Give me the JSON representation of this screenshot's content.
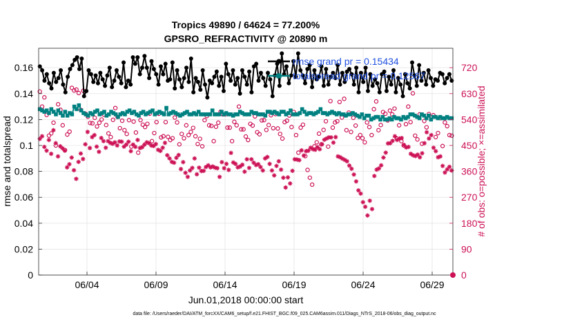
{
  "chart_data": {
    "type": "line",
    "title": "Tropics 49890 / 64624 = 77.200%",
    "subtitle": "GPSRO_REFRACTIVITY @ 20890 m",
    "xlabel": "Jun.01,2018 00:00:00 start",
    "ylabel": "rmse and totalspread",
    "ylabel_right": "# of obs: o=possible; ×=assimilated",
    "footer": "data file: /Users/raeder/DAI/ATM_forcXX/CAM6_setup/f.e21.FHIST_BGC.f09_025.CAM6assim.011/Diags_NTrS_2018-06/obs_diag_output.nc",
    "ylim": [
      0,
      0.175
    ],
    "ylim_right": [
      0,
      787.5
    ],
    "xlim": [
      0.5,
      30.5
    ],
    "yticks": [
      0,
      0.02,
      0.04,
      0.06,
      0.08,
      0.1,
      0.12,
      0.14,
      0.16
    ],
    "ytick_labels": [
      "0",
      "0.02",
      "0.04",
      "0.06",
      "0.08",
      "0.1",
      "0.12",
      "0.14",
      "0.16"
    ],
    "yticks_right": [
      0,
      90,
      180,
      270,
      360,
      450,
      540,
      630,
      720
    ],
    "xticks": [
      4,
      9,
      14,
      19,
      24,
      29
    ],
    "xtick_labels": [
      "06/04",
      "06/09",
      "06/14",
      "06/19",
      "06/24",
      "06/29"
    ],
    "legend": [
      {
        "label": "rmse grand pr = 0.15434",
        "color": "#000000"
      },
      {
        "label": "totalspread grand pr = 0.12567",
        "color": "#008080"
      }
    ],
    "series": [
      {
        "name": "rmse",
        "axis": "left",
        "color": "#000000",
        "values": [
          0.161,
          0.158,
          0.15,
          0.155,
          0.148,
          0.144,
          0.156,
          0.149,
          0.152,
          0.158,
          0.147,
          0.141,
          0.153,
          0.159,
          0.162,
          0.166,
          0.168,
          0.159,
          0.167,
          0.138,
          0.142,
          0.158,
          0.155,
          0.149,
          0.154,
          0.148,
          0.156,
          0.151,
          0.146,
          0.154,
          0.16,
          0.145,
          0.15,
          0.158,
          0.153,
          0.148,
          0.164,
          0.145,
          0.15,
          0.147,
          0.168,
          0.163,
          0.168,
          0.155,
          0.16,
          0.169,
          0.16,
          0.152,
          0.165,
          0.159,
          0.155,
          0.147,
          0.161,
          0.155,
          0.163,
          0.15,
          0.151,
          0.164,
          0.144,
          0.158,
          0.151,
          0.145,
          0.152,
          0.16,
          0.149,
          0.167,
          0.141,
          0.152,
          0.149,
          0.143,
          0.158,
          0.147,
          0.137,
          0.15,
          0.148,
          0.153,
          0.157,
          0.146,
          0.153,
          0.142,
          0.163,
          0.155,
          0.15,
          0.158,
          0.147,
          0.152,
          0.14,
          0.158,
          0.153,
          0.147,
          0.157,
          0.141,
          0.161,
          0.163,
          0.15,
          0.156,
          0.152,
          0.146,
          0.156,
          0.151,
          0.138,
          0.154,
          0.163,
          0.146,
          0.171,
          0.155,
          0.161,
          0.148,
          0.154,
          0.165,
          0.153,
          0.171,
          0.158,
          0.154,
          0.148,
          0.159,
          0.162,
          0.145,
          0.158,
          0.151,
          0.153,
          0.161,
          0.146,
          0.159,
          0.147,
          0.153,
          0.156,
          0.152,
          0.162,
          0.147,
          0.156,
          0.149,
          0.157,
          0.159,
          0.155,
          0.147,
          0.16,
          0.141,
          0.156,
          0.149,
          0.16,
          0.142,
          0.155,
          0.146,
          0.151,
          0.148,
          0.141,
          0.155,
          0.157,
          0.142,
          0.153,
          0.147,
          0.158,
          0.141,
          0.152,
          0.147,
          0.138,
          0.155,
          0.148,
          0.144,
          0.164,
          0.154,
          0.146,
          0.162,
          0.15,
          0.156,
          0.147,
          0.158,
          0.152,
          0.146,
          0.151,
          0.15,
          0.156,
          0.155,
          0.148,
          0.152,
          0.155,
          0.15
        ]
      },
      {
        "name": "totalspread",
        "axis": "left",
        "color": "#008080",
        "values": [
          0.128,
          0.127,
          0.126,
          0.127,
          0.125,
          0.128,
          0.126,
          0.124,
          0.127,
          0.125,
          0.123,
          0.126,
          0.123,
          0.125,
          0.124,
          0.13,
          0.128,
          0.131,
          0.127,
          0.125,
          0.124,
          0.123,
          0.125,
          0.124,
          0.126,
          0.127,
          0.124,
          0.125,
          0.126,
          0.123,
          0.124,
          0.126,
          0.125,
          0.124,
          0.122,
          0.124,
          0.125,
          0.124,
          0.126,
          0.127,
          0.125,
          0.126,
          0.124,
          0.123,
          0.125,
          0.126,
          0.124,
          0.125,
          0.126,
          0.127,
          0.124,
          0.125,
          0.126,
          0.125,
          0.124,
          0.129,
          0.124,
          0.125,
          0.126,
          0.125,
          0.124,
          0.123,
          0.124,
          0.125,
          0.126,
          0.124,
          0.124,
          0.125,
          0.124,
          0.126,
          0.124,
          0.124,
          0.124,
          0.124,
          0.124,
          0.127,
          0.124,
          0.124,
          0.124,
          0.126,
          0.124,
          0.125,
          0.124,
          0.124,
          0.123,
          0.124,
          0.124,
          0.126,
          0.125,
          0.124,
          0.124,
          0.124,
          0.126,
          0.125,
          0.125,
          0.124,
          0.124,
          0.124,
          0.123,
          0.126,
          0.126,
          0.125,
          0.126,
          0.125,
          0.124,
          0.126,
          0.126,
          0.124,
          0.125,
          0.127,
          0.124,
          0.124,
          0.124,
          0.125,
          0.128,
          0.126,
          0.124,
          0.125,
          0.125,
          0.124,
          0.125,
          0.126,
          0.128,
          0.125,
          0.125,
          0.124,
          0.125,
          0.126,
          0.125,
          0.124,
          0.125,
          0.124,
          0.124,
          0.123,
          0.124,
          0.124,
          0.125,
          0.124,
          0.123,
          0.122,
          0.124,
          0.121,
          0.123,
          0.123,
          0.12,
          0.121,
          0.122,
          0.122,
          0.12,
          0.122,
          0.12,
          0.12,
          0.121,
          0.12,
          0.122,
          0.121,
          0.121,
          0.12,
          0.122,
          0.121,
          0.122,
          0.124,
          0.124,
          0.123,
          0.122,
          0.121,
          0.124,
          0.123,
          0.121,
          0.123,
          0.12,
          0.122,
          0.122,
          0.121,
          0.122,
          0.121,
          0.121,
          0.122,
          0.121,
          0.121
        ]
      },
      {
        "name": "obs possible",
        "axis": "right",
        "marker": "o",
        "color": "#cc1155",
        "values": [
          637,
          585,
          617,
          556,
          484,
          492,
          529,
          450,
          593,
          574,
          520,
          434,
          488,
          498,
          650,
          641,
          644,
          632,
          573,
          640,
          560,
          550,
          528,
          527,
          546,
          516,
          529,
          540,
          557,
          521,
          492,
          479,
          539,
          580,
          549,
          510,
          536,
          503,
          490,
          538,
          446,
          533,
          495,
          425,
          538,
          522,
          514,
          525,
          560,
          465,
          493,
          531,
          560,
          478,
          482,
          531,
          480,
          469,
          475,
          547,
          530,
          454,
          490,
          475,
          520,
          486,
          497,
          511,
          482,
          455,
          473,
          447,
          538,
          552,
          520,
          518,
          465,
          515,
          529,
          567,
          558,
          558,
          512,
          512,
          465,
          532,
          520,
          585,
          506,
          506,
          481,
          469,
          525,
          519,
          551,
          496,
          489,
          537,
          538,
          504,
          521,
          555,
          510,
          559,
          509,
          490,
          474,
          531,
          536,
          554,
          514,
          566,
          486,
          425,
          512,
          522,
          413,
          365,
          338,
          314,
          447,
          461,
          491,
          454,
          504,
          534,
          446,
          604,
          512,
          530,
          534,
          601,
          547,
          612,
          503,
          564,
          497,
          546,
          519,
          476,
          486,
          475,
          461,
          530,
          514,
          486,
          576,
          603,
          503,
          521,
          566,
          560,
          537,
          571,
          558,
          578,
          474,
          520,
          465,
          450,
          524,
          585,
          531,
          631,
          484,
          471,
          558,
          456,
          535,
          513,
          559,
          547,
          555,
          479,
          493,
          545,
          448,
          530,
          517,
          486,
          484
        ]
      },
      {
        "name": "obs assimilated",
        "axis": "right",
        "marker": "x",
        "color": "#cc1155",
        "values": [
          473,
          482,
          445,
          432,
          469,
          421,
          503,
          458,
          412,
          447,
          440,
          432,
          374,
          385,
          408,
          364,
          334,
          393,
          422,
          403,
          454,
          497,
          441,
          479,
          486,
          446,
          428,
          476,
          465,
          442,
          465,
          459,
          456,
          461,
          450,
          464,
          463,
          446,
          453,
          463,
          430,
          453,
          445,
          469,
          441,
          444,
          453,
          461,
          458,
          450,
          448,
          455,
          435,
          431,
          442,
          459,
          416,
          405,
          393,
          390,
          407,
          417,
          368,
          392,
          355,
          341,
          363,
          372,
          405,
          350,
          373,
          361,
          362,
          375,
          381,
          374,
          377,
          373,
          371,
          341,
          392,
          371,
          386,
          365,
          424,
          391,
          386,
          374,
          377,
          383,
          359,
          402,
          372,
          402,
          390,
          382,
          385,
          375,
          363,
          405,
          410,
          386,
          363,
          346,
          379,
          395,
          366,
          338,
          304,
          339,
          318,
          362,
          402,
          401,
          399,
          433,
          415,
          430,
          432,
          442,
          437,
          435,
          444,
          437,
          454,
          470,
          474,
          478,
          478,
          460,
          479,
          412,
          409,
          404,
          400,
          395,
          380,
          369,
          349,
          325,
          294,
          283,
          253,
          237,
          207,
          258,
          229,
          344,
          366,
          370,
          381,
          408,
          425,
          457,
          458,
          466,
          482,
          469,
          474,
          476,
          452,
          443,
          445,
          421,
          416,
          413,
          418,
          409,
          423,
          458,
          496,
          474,
          486,
          442,
          430,
          409,
          412,
          379,
          356,
          367,
          376,
          363
        ]
      }
    ]
  }
}
